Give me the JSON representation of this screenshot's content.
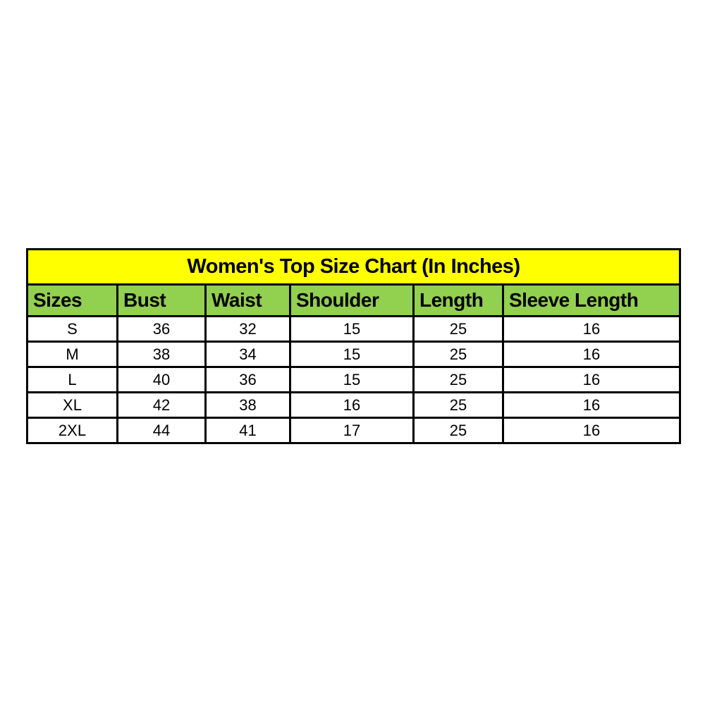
{
  "page": {
    "background_color": "#ffffff",
    "border_color": "#000000",
    "title_bg_color": "#ffff00",
    "header_bg_color": "#92d050",
    "text_color": "#000000"
  },
  "chart_data": {
    "type": "table",
    "title": "Women's Top Size Chart (In Inches)",
    "columns": [
      "Sizes",
      "Bust",
      "Waist",
      "Shoulder",
      "Length",
      "Sleeve Length"
    ],
    "rows": [
      [
        "S",
        "36",
        "32",
        "15",
        "25",
        "16"
      ],
      [
        "M",
        "38",
        "34",
        "15",
        "25",
        "16"
      ],
      [
        "L",
        "40",
        "36",
        "15",
        "25",
        "16"
      ],
      [
        "XL",
        "42",
        "38",
        "16",
        "25",
        "16"
      ],
      [
        "2XL",
        "44",
        "41",
        "17",
        "25",
        "16"
      ]
    ],
    "units": "inches",
    "layout": {
      "title_align": "center",
      "header_align": "left",
      "data_align": "center"
    }
  }
}
